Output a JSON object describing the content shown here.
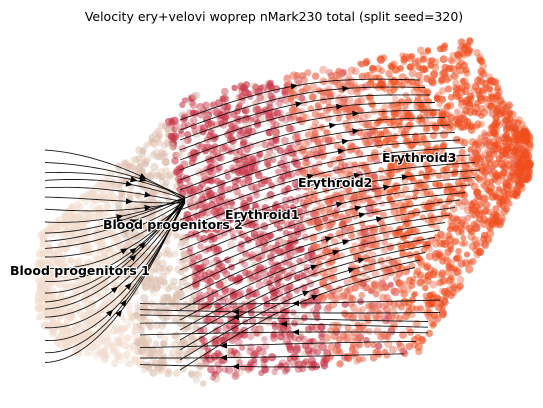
{
  "chart_data": {
    "type": "scatter",
    "title": "Velocity ery+velovi woprep nMark230 total (split seed=320)",
    "xlabel": "",
    "ylabel": "",
    "axes_visible": false,
    "grid": false,
    "legend": "none (cluster names printed on plot)",
    "embedding": "velocity streamlines over a 2-D cell embedding",
    "clusters": [
      {
        "name": "Blood progenitors 1",
        "color": "#f2dccd"
      },
      {
        "name": "Blood progenitors 2",
        "color": "#ddc0b0"
      },
      {
        "name": "Erythroid1",
        "color": "#c8384a"
      },
      {
        "name": "Erythroid2",
        "color": "#e9694f"
      },
      {
        "name": "Erythroid3",
        "color": "#f04e1e"
      }
    ],
    "flow_direction": "from Blood progenitors 1 toward Erythroid3 (left to right)"
  }
}
